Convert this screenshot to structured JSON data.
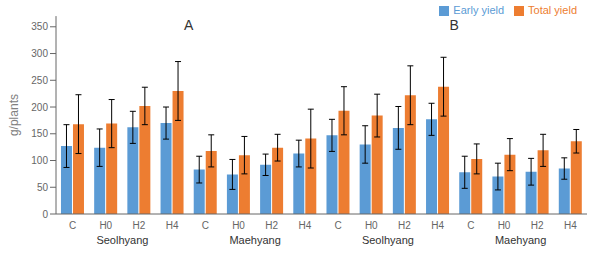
{
  "chart_data": {
    "type": "bar",
    "sections": [
      {
        "title": "A",
        "groups": [
          {
            "label": "Seolhyang",
            "categories": [
              "C",
              "H0",
              "H2",
              "H4"
            ]
          },
          {
            "label": "Maehyang",
            "categories": [
              "C",
              "H0",
              "H2",
              "H4"
            ]
          }
        ]
      },
      {
        "title": "B",
        "groups": [
          {
            "label": "Seolhyang",
            "categories": [
              "C",
              "H0",
              "H2",
              "H4"
            ]
          },
          {
            "label": "Maehyang",
            "categories": [
              "C",
              "H0",
              "H2",
              "H4"
            ]
          }
        ]
      }
    ],
    "series": [
      {
        "name": "Early yield",
        "color": "#5B9BD5",
        "values": [
          127,
          124,
          162,
          170,
          83,
          74,
          92,
          113,
          147,
          130,
          161,
          177,
          78,
          70,
          79,
          85
        ],
        "errors": [
          40,
          35,
          30,
          30,
          25,
          28,
          20,
          25,
          30,
          35,
          40,
          30,
          30,
          25,
          25,
          20
        ]
      },
      {
        "name": "Total yield",
        "color": "#ED7D31",
        "values": [
          168,
          169,
          202,
          230,
          118,
          110,
          124,
          141,
          193,
          184,
          222,
          238,
          103,
          111,
          119,
          136
        ],
        "errors": [
          55,
          45,
          35,
          55,
          30,
          35,
          25,
          55,
          45,
          40,
          55,
          55,
          28,
          30,
          30,
          22
        ]
      }
    ],
    "ylabel": "g/plants",
    "ylim": [
      0,
      370
    ],
    "yticks": [
      0,
      50,
      100,
      150,
      200,
      250,
      300,
      350
    ],
    "legend": "upper right",
    "grid": false
  }
}
